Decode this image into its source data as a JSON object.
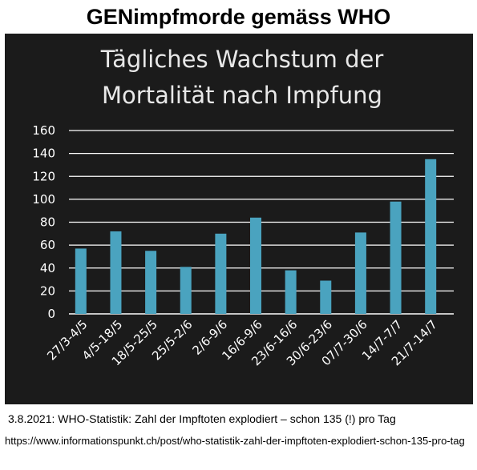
{
  "headline": "GENimpfmorde gemäss WHO",
  "caption": "3.8.2021: WHO-Statistik: Zahl der Impftoten explodiert – schon 135 (!) pro Tag",
  "source_url": "https://www.informationspunkt.ch/post/who-statistik-zahl-der-impftoten-explodiert-schon-135-pro-tag",
  "colors": {
    "panel": "#1b1b1b",
    "bar": "#4aa3bf",
    "grid": "#ffffff",
    "text": "#ffffff"
  },
  "chart_data": {
    "type": "bar",
    "title_lines": [
      "Tägliches Wachstum der",
      "Mortalität nach Impfung"
    ],
    "categories": [
      "27/3-4/5",
      "4/5-18/5",
      "18/5-25/5",
      "25/5-2/6",
      "2/6-9/6",
      "16/6-9/6",
      "23/6-16/6",
      "30/6-23/6",
      "07/7-30/6",
      "14/7-7/7",
      "21/7-14/7"
    ],
    "values": [
      57,
      72,
      55,
      41,
      70,
      84,
      38,
      29,
      71,
      98,
      135
    ],
    "yticks": [
      0,
      20,
      40,
      60,
      80,
      100,
      120,
      140,
      160
    ],
    "ylim": [
      0,
      160
    ],
    "grid": true,
    "legend": "none"
  }
}
